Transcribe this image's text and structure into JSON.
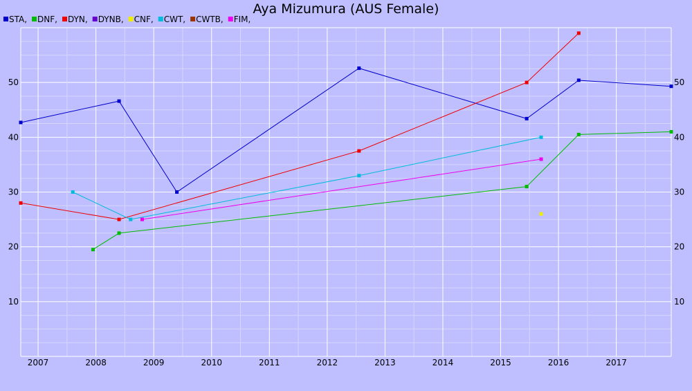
{
  "chart_data": {
    "type": "line",
    "title": "Aya Mizumura (AUS Female)",
    "xlabel": "",
    "ylabel": "",
    "xlim": [
      2006.7,
      2017.95
    ],
    "ylim": [
      0,
      60
    ],
    "grid": true,
    "legend_position": "top-left",
    "x_ticks": [
      2007,
      2008,
      2009,
      2010,
      2011,
      2012,
      2013,
      2014,
      2015,
      2016,
      2017
    ],
    "y_ticks": [
      10,
      20,
      30,
      40,
      50
    ],
    "legend": [
      {
        "label": "STA,",
        "color": "#0000cc"
      },
      {
        "label": "DNF,",
        "color": "#00bb00"
      },
      {
        "label": "DYN,",
        "color": "#ee0000"
      },
      {
        "label": "DYNB,",
        "color": "#6600cc"
      },
      {
        "label": "CNF,",
        "color": "#eeee00"
      },
      {
        "label": "CWT,",
        "color": "#00bbdd"
      },
      {
        "label": "CWTB,",
        "color": "#993300"
      },
      {
        "label": "FIM,",
        "color": "#ee00ee"
      }
    ],
    "series": [
      {
        "name": "STA",
        "color": "#0000cc",
        "points": [
          [
            2006.7,
            42.7
          ],
          [
            2008.4,
            46.6
          ],
          [
            2009.4,
            30.0
          ],
          [
            2012.55,
            52.6
          ],
          [
            2015.45,
            43.4
          ],
          [
            2016.35,
            50.4
          ],
          [
            2017.95,
            49.3
          ]
        ]
      },
      {
        "name": "DNF",
        "color": "#00bb00",
        "points": [
          [
            2007.95,
            19.5
          ],
          [
            2008.4,
            22.5
          ],
          [
            2015.45,
            31.0
          ],
          [
            2016.35,
            40.5
          ],
          [
            2017.95,
            41.0
          ]
        ]
      },
      {
        "name": "DYN",
        "color": "#ee0000",
        "points": [
          [
            2006.7,
            28.0
          ],
          [
            2008.4,
            25.0
          ],
          [
            2012.55,
            37.5
          ],
          [
            2015.45,
            50.0
          ],
          [
            2016.35,
            59.0
          ]
        ]
      },
      {
        "name": "CNF",
        "color": "#eeee00",
        "points": [
          [
            2015.7,
            26.0
          ]
        ]
      },
      {
        "name": "CWT",
        "color": "#00bbdd",
        "points": [
          [
            2007.6,
            30.0
          ],
          [
            2008.6,
            25.0
          ],
          [
            2012.55,
            33.0
          ],
          [
            2015.7,
            40.0
          ]
        ]
      },
      {
        "name": "FIM",
        "color": "#ee00ee",
        "points": [
          [
            2008.8,
            25.0
          ],
          [
            2015.7,
            36.0
          ]
        ]
      }
    ]
  }
}
